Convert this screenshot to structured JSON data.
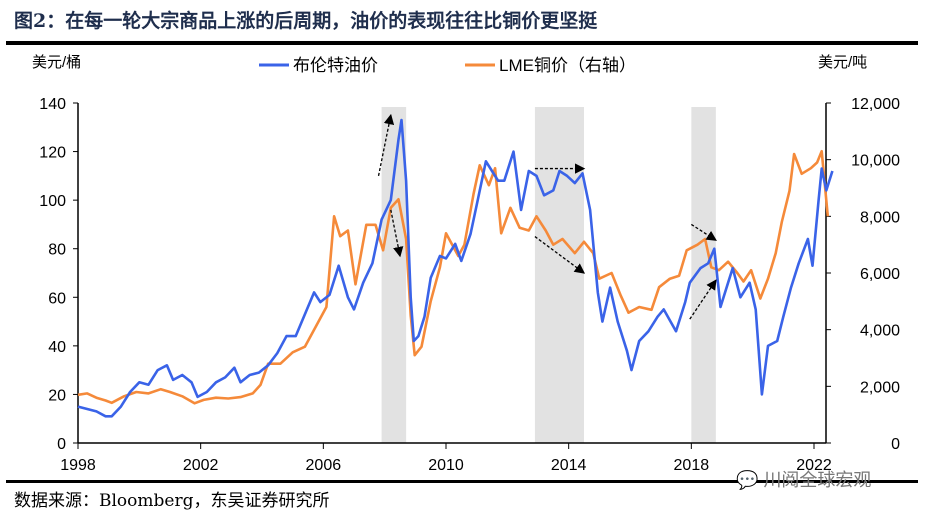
{
  "title": "图2：在每一轮大宗商品上涨的后周期，油价的表现往往比铜价更坚挺",
  "source": "数据来源：Bloomberg，东吴证券研究所",
  "watermark": "川阅全球宏观",
  "chart_data": {
    "type": "line",
    "left_unit": "美元/桶",
    "right_unit": "美元/吨",
    "xlim": [
      1998,
      2022.7
    ],
    "x_ticks": [
      "1998",
      "2002",
      "2006",
      "2010",
      "2014",
      "2018",
      "2022"
    ],
    "ylim_left": [
      0,
      140
    ],
    "y_ticks_left": [
      "0",
      "20",
      "40",
      "60",
      "80",
      "100",
      "120",
      "140"
    ],
    "ylim_right": [
      0,
      12000
    ],
    "y_ticks_right": [
      "0",
      "2,000",
      "4,000",
      "6,000",
      "8,000",
      "10,000",
      "12,000"
    ],
    "shaded_periods": [
      [
        2007.9,
        2008.7
      ],
      [
        2012.9,
        2014.5
      ],
      [
        2018.0,
        2018.8
      ]
    ],
    "series": [
      {
        "name": "布伦特油价",
        "axis": "left",
        "color": "#3a63e8",
        "points": [
          [
            1998,
            15
          ],
          [
            1998.3,
            14
          ],
          [
            1998.6,
            13
          ],
          [
            1998.9,
            11
          ],
          [
            1999.1,
            11
          ],
          [
            1999.4,
            15
          ],
          [
            1999.7,
            21
          ],
          [
            2000,
            25
          ],
          [
            2000.3,
            24
          ],
          [
            2000.6,
            30
          ],
          [
            2000.9,
            32
          ],
          [
            2001.1,
            26
          ],
          [
            2001.4,
            28
          ],
          [
            2001.7,
            25
          ],
          [
            2001.9,
            19
          ],
          [
            2002.2,
            21
          ],
          [
            2002.5,
            25
          ],
          [
            2002.8,
            27
          ],
          [
            2003.1,
            31
          ],
          [
            2003.3,
            25
          ],
          [
            2003.6,
            28
          ],
          [
            2003.9,
            29
          ],
          [
            2004.2,
            32
          ],
          [
            2004.5,
            37
          ],
          [
            2004.8,
            44
          ],
          [
            2005.1,
            44
          ],
          [
            2005.4,
            53
          ],
          [
            2005.7,
            62
          ],
          [
            2005.9,
            58
          ],
          [
            2006.2,
            61
          ],
          [
            2006.5,
            73
          ],
          [
            2006.8,
            60
          ],
          [
            2007,
            55
          ],
          [
            2007.3,
            66
          ],
          [
            2007.6,
            74
          ],
          [
            2007.9,
            92
          ],
          [
            2008.2,
            100
          ],
          [
            2008.45,
            125
          ],
          [
            2008.55,
            133
          ],
          [
            2008.7,
            108
          ],
          [
            2008.85,
            60
          ],
          [
            2008.95,
            42
          ],
          [
            2009.1,
            44
          ],
          [
            2009.3,
            52
          ],
          [
            2009.5,
            68
          ],
          [
            2009.8,
            77
          ],
          [
            2010,
            76
          ],
          [
            2010.3,
            82
          ],
          [
            2010.5,
            75
          ],
          [
            2010.8,
            86
          ],
          [
            2011,
            98
          ],
          [
            2011.3,
            116
          ],
          [
            2011.5,
            112
          ],
          [
            2011.7,
            108
          ],
          [
            2011.9,
            108
          ],
          [
            2012.2,
            120
          ],
          [
            2012.45,
            96
          ],
          [
            2012.7,
            112
          ],
          [
            2012.95,
            110
          ],
          [
            2013.2,
            102
          ],
          [
            2013.5,
            104
          ],
          [
            2013.7,
            112
          ],
          [
            2013.95,
            110
          ],
          [
            2014.2,
            107
          ],
          [
            2014.45,
            111
          ],
          [
            2014.7,
            96
          ],
          [
            2014.95,
            62
          ],
          [
            2015.1,
            50
          ],
          [
            2015.35,
            64
          ],
          [
            2015.6,
            50
          ],
          [
            2015.9,
            38
          ],
          [
            2016.05,
            30
          ],
          [
            2016.3,
            42
          ],
          [
            2016.6,
            46
          ],
          [
            2016.9,
            52
          ],
          [
            2017.1,
            55
          ],
          [
            2017.5,
            46
          ],
          [
            2017.8,
            58
          ],
          [
            2017.95,
            66
          ],
          [
            2018.3,
            72
          ],
          [
            2018.55,
            74
          ],
          [
            2018.75,
            80
          ],
          [
            2018.95,
            56
          ],
          [
            2019.2,
            66
          ],
          [
            2019.35,
            72
          ],
          [
            2019.6,
            60
          ],
          [
            2019.9,
            66
          ],
          [
            2020.1,
            55
          ],
          [
            2020.3,
            20
          ],
          [
            2020.5,
            40
          ],
          [
            2020.8,
            42
          ],
          [
            2021,
            52
          ],
          [
            2021.25,
            64
          ],
          [
            2021.5,
            74
          ],
          [
            2021.8,
            84
          ],
          [
            2021.95,
            73
          ],
          [
            2022.15,
            100
          ],
          [
            2022.25,
            113
          ],
          [
            2022.4,
            104
          ],
          [
            2022.6,
            112
          ]
        ]
      },
      {
        "name": "LME铜价（右轴）",
        "axis": "right",
        "color": "#f58a3a",
        "points": [
          [
            1998,
            1700
          ],
          [
            1998.3,
            1750
          ],
          [
            1998.6,
            1600
          ],
          [
            1998.9,
            1500
          ],
          [
            1999.1,
            1420
          ],
          [
            1999.5,
            1650
          ],
          [
            1999.9,
            1800
          ],
          [
            2000.3,
            1750
          ],
          [
            2000.7,
            1900
          ],
          [
            2001,
            1800
          ],
          [
            2001.4,
            1650
          ],
          [
            2001.8,
            1400
          ],
          [
            2002.1,
            1520
          ],
          [
            2002.5,
            1600
          ],
          [
            2002.9,
            1570
          ],
          [
            2003.3,
            1620
          ],
          [
            2003.7,
            1750
          ],
          [
            2003.95,
            2050
          ],
          [
            2004.2,
            2800
          ],
          [
            2004.6,
            2800
          ],
          [
            2005,
            3200
          ],
          [
            2005.4,
            3400
          ],
          [
            2005.8,
            4200
          ],
          [
            2006.1,
            4800
          ],
          [
            2006.35,
            8000
          ],
          [
            2006.55,
            7300
          ],
          [
            2006.8,
            7500
          ],
          [
            2007.05,
            5600
          ],
          [
            2007.4,
            7700
          ],
          [
            2007.7,
            7700
          ],
          [
            2007.95,
            6800
          ],
          [
            2008.2,
            8300
          ],
          [
            2008.45,
            8600
          ],
          [
            2008.7,
            7200
          ],
          [
            2008.85,
            4500
          ],
          [
            2008.98,
            3100
          ],
          [
            2009.2,
            3400
          ],
          [
            2009.5,
            5000
          ],
          [
            2009.8,
            6200
          ],
          [
            2010,
            7400
          ],
          [
            2010.4,
            6600
          ],
          [
            2010.6,
            7000
          ],
          [
            2010.9,
            8800
          ],
          [
            2011.1,
            9800
          ],
          [
            2011.4,
            9100
          ],
          [
            2011.6,
            9700
          ],
          [
            2011.8,
            7400
          ],
          [
            2012.1,
            8300
          ],
          [
            2012.4,
            7600
          ],
          [
            2012.7,
            7500
          ],
          [
            2012.95,
            8000
          ],
          [
            2013.25,
            7500
          ],
          [
            2013.5,
            7000
          ],
          [
            2013.8,
            7200
          ],
          [
            2014.2,
            6700
          ],
          [
            2014.5,
            7100
          ],
          [
            2014.8,
            6700
          ],
          [
            2015.0,
            5800
          ],
          [
            2015.4,
            6000
          ],
          [
            2015.7,
            5200
          ],
          [
            2015.95,
            4600
          ],
          [
            2016.3,
            4800
          ],
          [
            2016.7,
            4700
          ],
          [
            2016.95,
            5500
          ],
          [
            2017.3,
            5800
          ],
          [
            2017.6,
            5900
          ],
          [
            2017.85,
            6800
          ],
          [
            2018.2,
            7000
          ],
          [
            2018.45,
            7200
          ],
          [
            2018.65,
            6200
          ],
          [
            2018.9,
            6100
          ],
          [
            2019.2,
            6400
          ],
          [
            2019.5,
            6000
          ],
          [
            2019.7,
            5700
          ],
          [
            2019.95,
            6100
          ],
          [
            2020.25,
            5100
          ],
          [
            2020.5,
            5800
          ],
          [
            2020.75,
            6700
          ],
          [
            2020.95,
            7800
          ],
          [
            2021.2,
            8900
          ],
          [
            2021.35,
            10200
          ],
          [
            2021.6,
            9500
          ],
          [
            2021.9,
            9700
          ],
          [
            2022.1,
            9900
          ],
          [
            2022.25,
            10300
          ],
          [
            2022.45,
            8000
          ]
        ]
      }
    ],
    "annotations": [
      {
        "type": "arrow",
        "from": [
          2007.8,
          110
        ],
        "to": [
          2008.2,
          135
        ]
      },
      {
        "type": "arrow",
        "from": [
          2008.2,
          96
        ],
        "to": [
          2008.5,
          77
        ]
      },
      {
        "type": "arrow",
        "from": [
          2012.9,
          113
        ],
        "to": [
          2014.5,
          113
        ]
      },
      {
        "type": "arrow",
        "from": [
          2012.9,
          85
        ],
        "to": [
          2014.5,
          70
        ]
      },
      {
        "type": "arrow",
        "from": [
          2018.0,
          90
        ],
        "to": [
          2018.8,
          83.5
        ]
      },
      {
        "type": "arrow",
        "from": [
          2017.95,
          51
        ],
        "to": [
          2018.8,
          67
        ]
      }
    ]
  }
}
